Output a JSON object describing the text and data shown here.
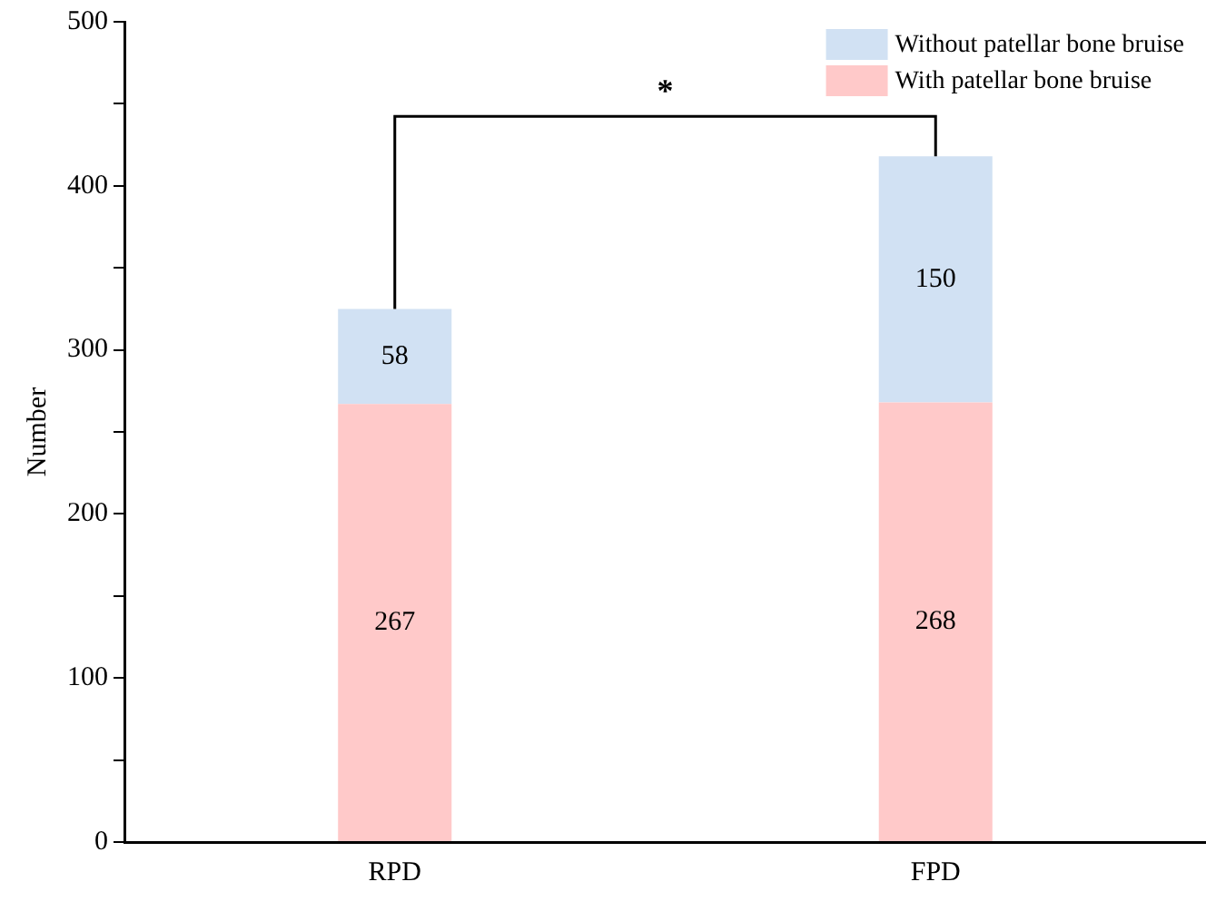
{
  "chart_data": {
    "type": "bar",
    "stacked": true,
    "ylabel": "Number",
    "categories": [
      "RPD",
      "FPD"
    ],
    "series": [
      {
        "name": "With patellar bone bruise",
        "color": "#ffc9c9",
        "values": [
          267,
          268
        ]
      },
      {
        "name": "Without patellar bone bruise",
        "color": "#d1e1f3",
        "values": [
          58,
          150
        ]
      }
    ],
    "ylim": [
      0,
      500
    ],
    "yticks": [
      0,
      {
        "value": 50,
        "label": null
      },
      100,
      {
        "value": 150,
        "label": null
      },
      200,
      {
        "value": 250,
        "label": null
      },
      300,
      {
        "value": 350,
        "label": null
      },
      400,
      {
        "value": 450,
        "label": null
      },
      500
    ],
    "grid": false,
    "legend": "top right",
    "data_labels": true,
    "annotations": [
      "*"
    ]
  }
}
